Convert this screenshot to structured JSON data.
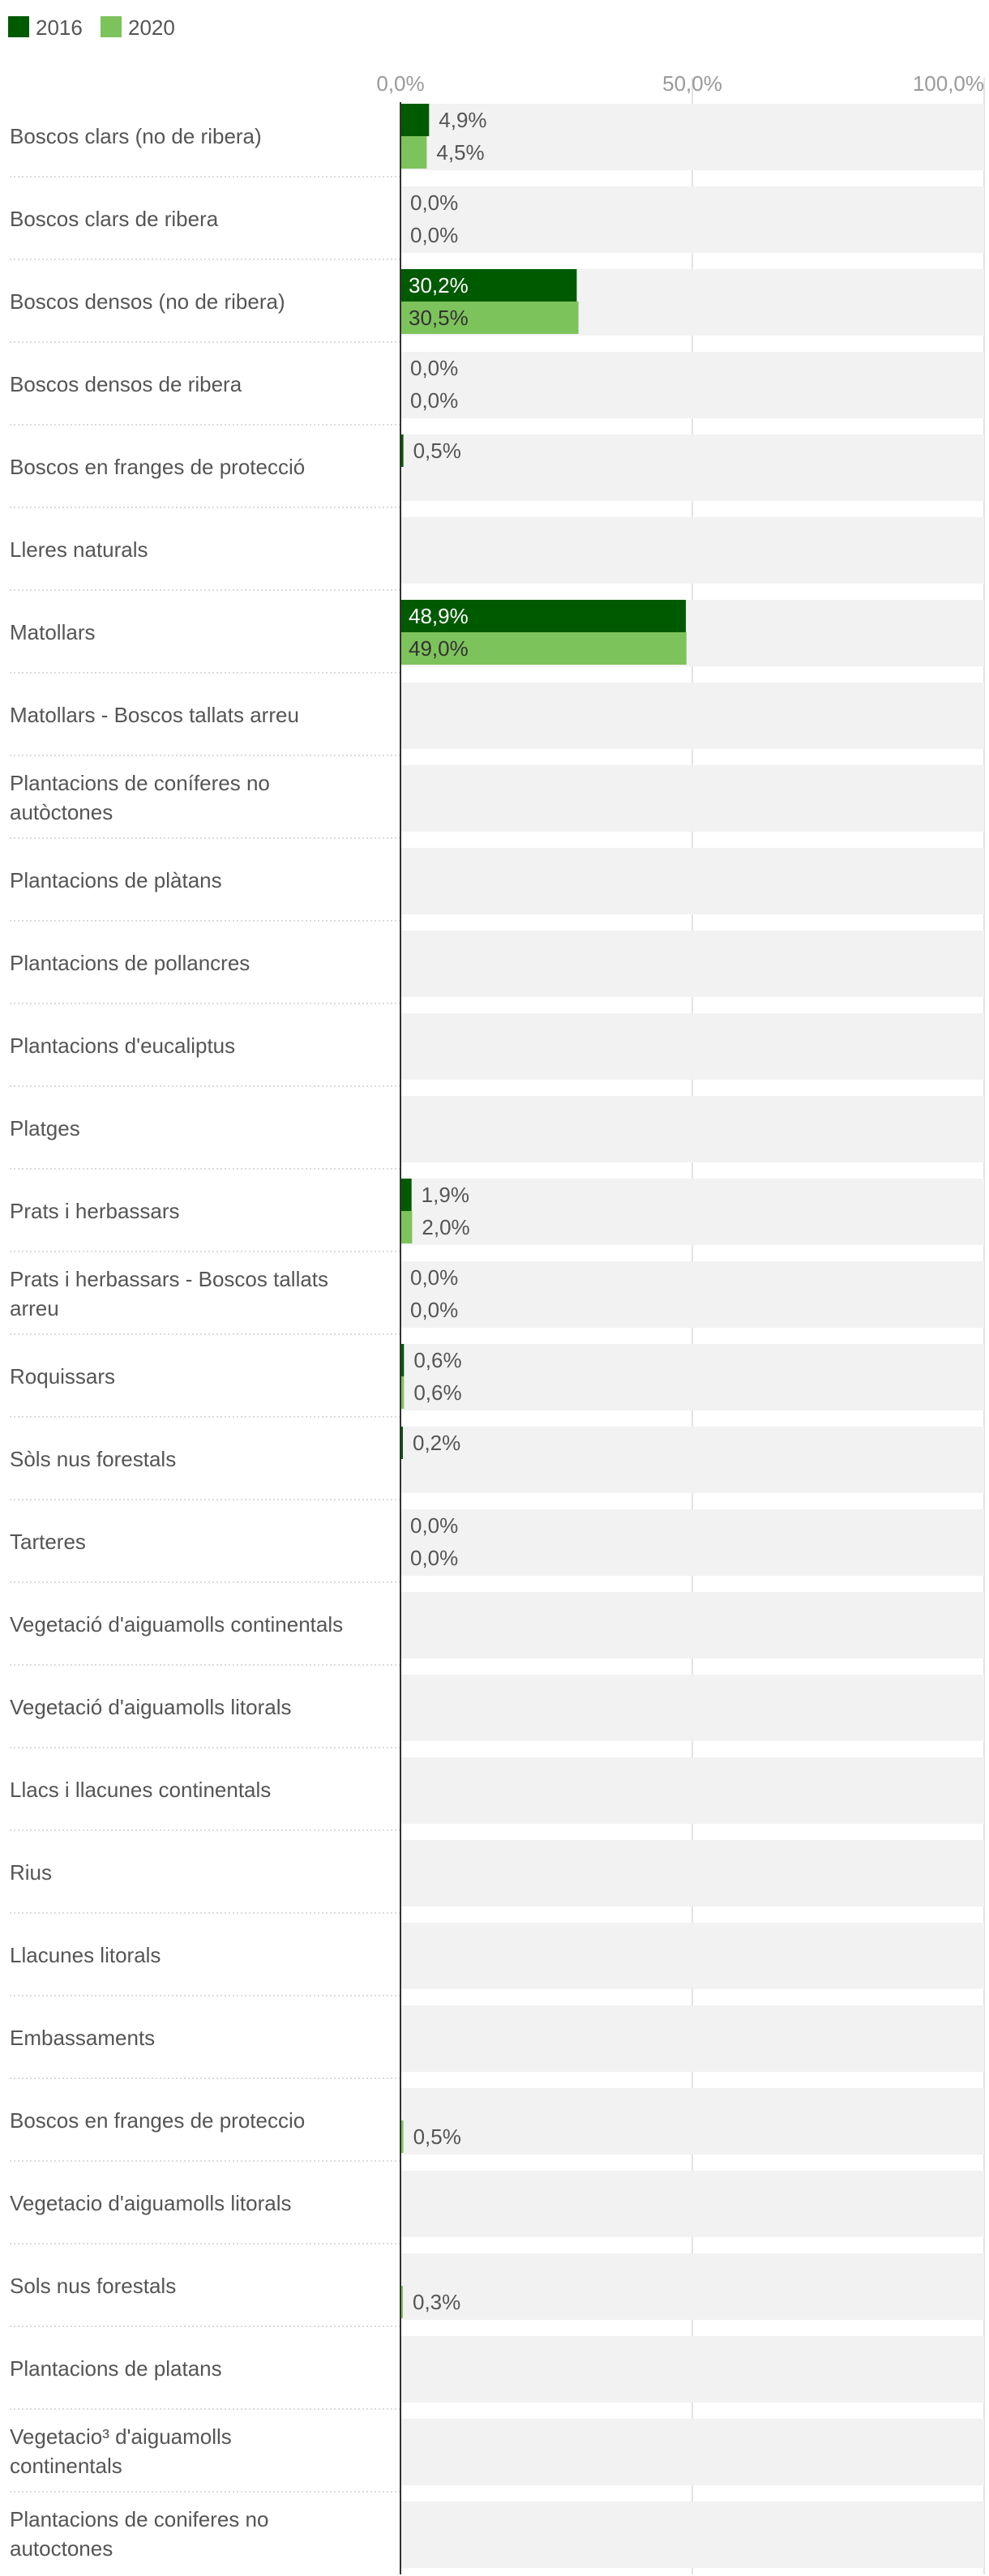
{
  "chart_data": {
    "type": "bar",
    "orientation": "horizontal",
    "xlim": [
      0,
      100
    ],
    "ticks": [
      "0,0%",
      "50,0%",
      "100,0%"
    ],
    "tick_values": [
      0,
      50,
      100
    ],
    "grid": true,
    "legend_position": "top-left",
    "series": [
      {
        "name": "2016",
        "color": "#005a00"
      },
      {
        "name": "2020",
        "color": "#7dc35b"
      }
    ],
    "rows": [
      {
        "label": "Boscos clars (no de ribera)",
        "v2016": 4.9,
        "v2020": 4.5,
        "l2016": "4,9%",
        "l2020": "4,5%"
      },
      {
        "label": "Boscos clars de ribera",
        "v2016": 0,
        "v2020": 0,
        "l2016": "0,0%",
        "l2020": "0,0%"
      },
      {
        "label": "Boscos densos (no de ribera)",
        "v2016": 30.2,
        "v2020": 30.5,
        "l2016": "30,2%",
        "l2020": "30,5%"
      },
      {
        "label": "Boscos densos de ribera",
        "v2016": 0,
        "v2020": 0,
        "l2016": "0,0%",
        "l2020": "0,0%"
      },
      {
        "label": "Boscos en franges de protecció",
        "v2016": 0.5,
        "v2020": null,
        "l2016": "0,5%",
        "l2020": null
      },
      {
        "label": "Lleres naturals",
        "v2016": null,
        "v2020": null,
        "l2016": null,
        "l2020": null
      },
      {
        "label": "Matollars",
        "v2016": 48.9,
        "v2020": 49.0,
        "l2016": "48,9%",
        "l2020": "49,0%"
      },
      {
        "label": "Matollars - Boscos tallats arreu",
        "v2016": null,
        "v2020": null,
        "l2016": null,
        "l2020": null
      },
      {
        "label": "Plantacions de coníferes no autòctones",
        "v2016": null,
        "v2020": null,
        "l2016": null,
        "l2020": null
      },
      {
        "label": "Plantacions de plàtans",
        "v2016": null,
        "v2020": null,
        "l2016": null,
        "l2020": null
      },
      {
        "label": "Plantacions de pollancres",
        "v2016": null,
        "v2020": null,
        "l2016": null,
        "l2020": null
      },
      {
        "label": "Plantacions d'eucaliptus",
        "v2016": null,
        "v2020": null,
        "l2016": null,
        "l2020": null
      },
      {
        "label": "Platges",
        "v2016": null,
        "v2020": null,
        "l2016": null,
        "l2020": null
      },
      {
        "label": "Prats i herbassars",
        "v2016": 1.9,
        "v2020": 2.0,
        "l2016": "1,9%",
        "l2020": "2,0%"
      },
      {
        "label": "Prats i herbassars - Boscos tallats arreu",
        "v2016": 0,
        "v2020": 0,
        "l2016": "0,0%",
        "l2020": "0,0%"
      },
      {
        "label": "Roquissars",
        "v2016": 0.6,
        "v2020": 0.6,
        "l2016": "0,6%",
        "l2020": "0,6%"
      },
      {
        "label": "Sòls nus forestals",
        "v2016": 0.2,
        "v2020": null,
        "l2016": "0,2%",
        "l2020": null
      },
      {
        "label": "Tarteres",
        "v2016": 0,
        "v2020": 0,
        "l2016": "0,0%",
        "l2020": "0,0%"
      },
      {
        "label": "Vegetació d'aiguamolls continentals",
        "v2016": null,
        "v2020": null,
        "l2016": null,
        "l2020": null
      },
      {
        "label": "Vegetació d'aiguamolls litorals",
        "v2016": null,
        "v2020": null,
        "l2016": null,
        "l2020": null
      },
      {
        "label": "Llacs i llacunes continentals",
        "v2016": null,
        "v2020": null,
        "l2016": null,
        "l2020": null
      },
      {
        "label": "Rius",
        "v2016": null,
        "v2020": null,
        "l2016": null,
        "l2020": null
      },
      {
        "label": "Llacunes litorals",
        "v2016": null,
        "v2020": null,
        "l2016": null,
        "l2020": null
      },
      {
        "label": "Embassaments",
        "v2016": null,
        "v2020": null,
        "l2016": null,
        "l2020": null
      },
      {
        "label": "Boscos en franges de proteccio",
        "v2016": null,
        "v2020": 0.5,
        "l2016": null,
        "l2020": "0,5%"
      },
      {
        "label": "Vegetacio d'aiguamolls litorals",
        "v2016": null,
        "v2020": null,
        "l2016": null,
        "l2020": null
      },
      {
        "label": "Sols nus forestals",
        "v2016": null,
        "v2020": 0.3,
        "l2016": null,
        "l2020": "0,3%"
      },
      {
        "label": "Plantacions de platans",
        "v2016": null,
        "v2020": null,
        "l2016": null,
        "l2020": null
      },
      {
        "label": "Vegetacio³ d'aiguamolls continentals",
        "v2016": null,
        "v2020": null,
        "l2016": null,
        "l2020": null
      },
      {
        "label": "Plantacions de coniferes no autoctones",
        "v2016": null,
        "v2020": null,
        "l2016": null,
        "l2020": null
      }
    ]
  }
}
